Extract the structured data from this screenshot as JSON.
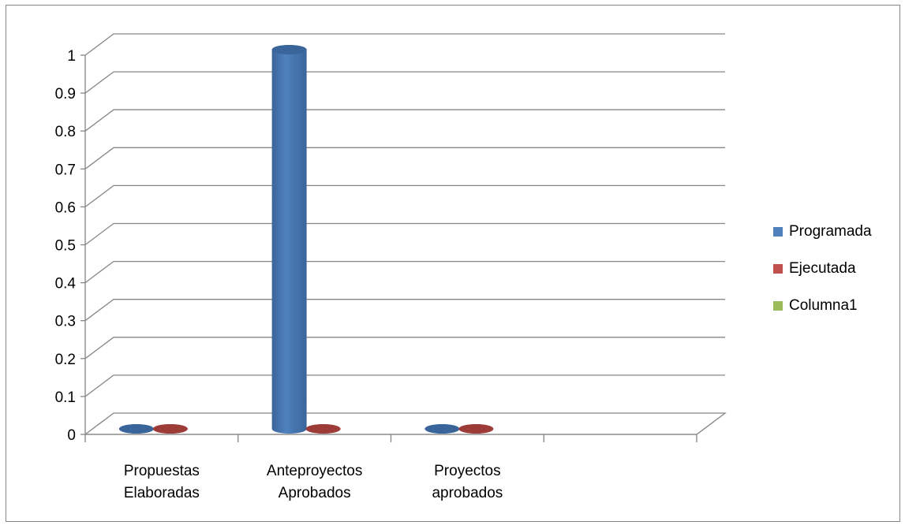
{
  "chart_data": {
    "type": "bar",
    "subtype": "3d-cylinder-clustered",
    "title": "",
    "xlabel": "",
    "ylabel": "",
    "ylim": [
      0,
      1
    ],
    "yticks": [
      "0",
      "0.1",
      "0.2",
      "0.3",
      "0.4",
      "0.5",
      "0.6",
      "0.7",
      "0.8",
      "0.9",
      "1"
    ],
    "categories": [
      [
        "Propuestas",
        "Elaboradas"
      ],
      [
        "Anteproyectos",
        "Aprobados"
      ],
      [
        "Proyectos",
        "aprobados"
      ],
      []
    ],
    "series": [
      {
        "name": "Programada",
        "color": "#4f81bd",
        "values": [
          0,
          1,
          0,
          null
        ]
      },
      {
        "name": "Ejecutada",
        "color": "#c0504d",
        "values": [
          0,
          0,
          0,
          null
        ]
      },
      {
        "name": "Columna1",
        "color": "#9bbb59",
        "values": [
          null,
          null,
          null,
          null
        ]
      }
    ],
    "grid": true,
    "legend_position": "right"
  }
}
